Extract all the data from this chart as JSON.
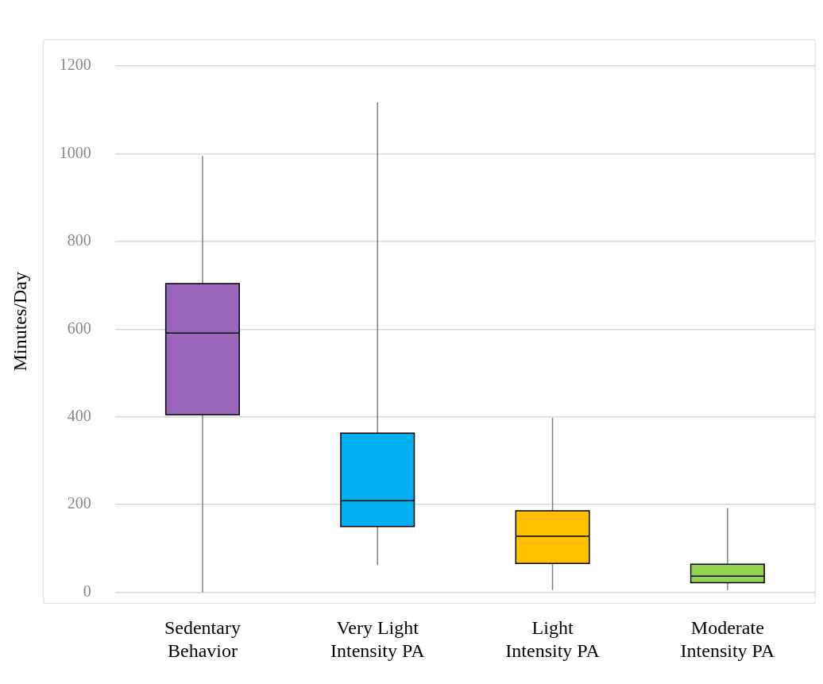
{
  "chart_data": {
    "type": "box",
    "ylabel": "Minutes/Day",
    "categories": [
      "Sedentary Behavior",
      "Very Light Intensity PA",
      "Light Intensity PA",
      "Moderate Intensity PA"
    ],
    "colors": [
      "#9966bb",
      "#00b0f0",
      "#ffc000",
      "#92d050"
    ],
    "boxes": [
      {
        "low": 0,
        "q1": 405,
        "median": 591,
        "q3": 704,
        "high": 995
      },
      {
        "low": 62,
        "q1": 150,
        "median": 209,
        "q3": 363,
        "high": 1117
      },
      {
        "low": 5,
        "q1": 66,
        "median": 128,
        "q3": 186,
        "high": 398
      },
      {
        "low": 5,
        "q1": 22,
        "median": 37,
        "q3": 64,
        "high": 192
      }
    ],
    "ylim": [
      -25,
      1260
    ],
    "yticks": [
      0,
      200,
      400,
      600,
      800,
      1000,
      1200
    ],
    "grid": "y"
  }
}
